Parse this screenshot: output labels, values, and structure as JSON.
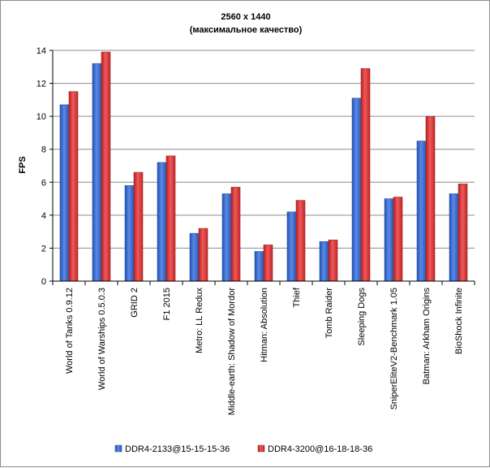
{
  "chart_data": {
    "type": "bar",
    "title": "2560 x 1440",
    "subtitle": "(максимальное   качество)",
    "ylabel": "FPS",
    "xlabel": "",
    "ylim": [
      0,
      14
    ],
    "yticks": [
      0,
      2,
      4,
      6,
      8,
      10,
      12,
      14
    ],
    "grid": true,
    "legend_position": "bottom",
    "categories": [
      "World of Tanks 0.9.12",
      "World of Warships 0.5.0.3",
      "GRID 2",
      "F1 2015",
      "Metro: LL Redux",
      "Middle-earth: Shadow of Mordor",
      "Hitman: Absolution",
      "Thief",
      "Tomb Raider",
      "Sleeping Dogs",
      "SniperEliteV2-Benchmark 1.05",
      "Batman: Arkham Origins",
      "BioShock Infinite"
    ],
    "series": [
      {
        "name": "DDR4-2133@15-15-15-36",
        "color": "#3d6fd1",
        "values": [
          10.7,
          13.2,
          5.8,
          7.2,
          2.9,
          5.3,
          1.8,
          4.2,
          2.4,
          11.1,
          5.0,
          8.5,
          5.3
        ]
      },
      {
        "name": "DDR4-3200@16-18-18-36",
        "color": "#e03a3a",
        "values": [
          11.5,
          13.9,
          6.6,
          7.6,
          3.2,
          5.7,
          2.2,
          4.9,
          2.5,
          12.9,
          5.1,
          10.0,
          5.9
        ]
      }
    ]
  }
}
